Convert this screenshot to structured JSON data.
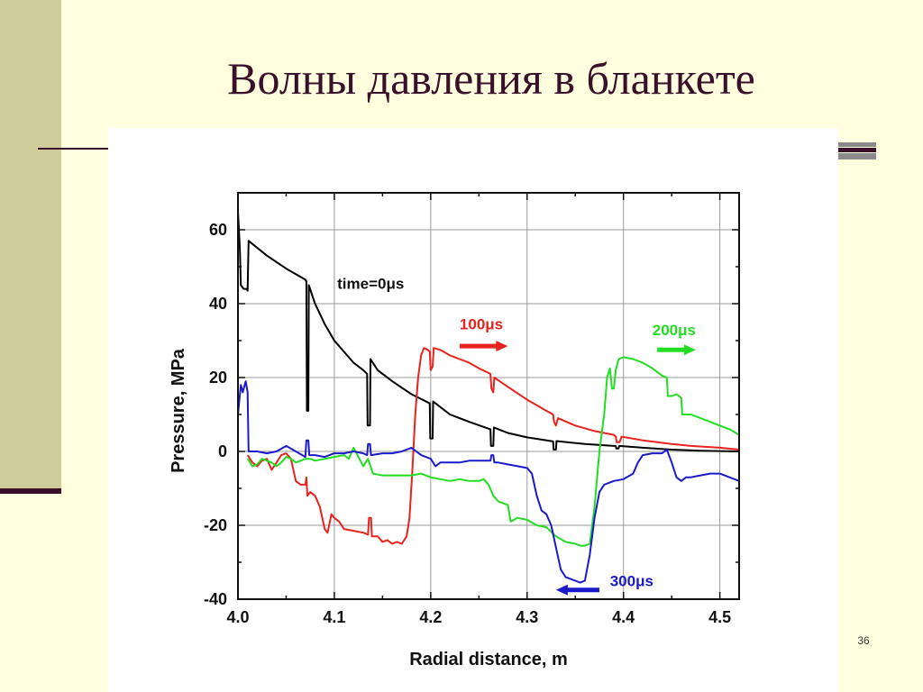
{
  "slide": {
    "title": "Волны давления в бланкете",
    "page_number": "36"
  },
  "colors": {
    "background": "#ffffe0",
    "accent_dark": "#3a0f2a",
    "band": "#cfcb9a"
  },
  "chart_data": {
    "type": "line",
    "title": "",
    "xlabel": "Radial distance, m",
    "ylabel": "Pressure, MPa",
    "xlim": [
      4.0,
      4.52
    ],
    "ylim": [
      -40,
      70
    ],
    "x_ticks": [
      4.0,
      4.1,
      4.2,
      4.3,
      4.4,
      4.5
    ],
    "x_tick_labels": [
      "4.0",
      "4.1",
      "4.2",
      "4.3",
      "4.4",
      "4.5"
    ],
    "y_ticks": [
      -40,
      -20,
      0,
      20,
      40,
      60
    ],
    "y_tick_labels": [
      "-40",
      "-20",
      "0",
      "20",
      "40",
      "60"
    ],
    "grid": true,
    "legend": "none",
    "series": [
      {
        "label": "time=0μs",
        "color": "#000000",
        "annotation": {
          "text": "time=0μs",
          "x": 4.103,
          "y": 44,
          "color": "#111111"
        },
        "points": [
          [
            4.0,
            65
          ],
          [
            4.002,
            55
          ],
          [
            4.003,
            45
          ],
          [
            4.006,
            44
          ],
          [
            4.009,
            44
          ],
          [
            4.01,
            43.5
          ],
          [
            4.011,
            57
          ],
          [
            4.03,
            53
          ],
          [
            4.05,
            49.5
          ],
          [
            4.07,
            46.5
          ],
          [
            4.071,
            46
          ],
          [
            4.0715,
            11
          ],
          [
            4.073,
            11
          ],
          [
            4.0735,
            45
          ],
          [
            4.08,
            40
          ],
          [
            4.09,
            34.5
          ],
          [
            4.1,
            30
          ],
          [
            4.11,
            27
          ],
          [
            4.12,
            24
          ],
          [
            4.13,
            22
          ],
          [
            4.134,
            21
          ],
          [
            4.1345,
            7
          ],
          [
            4.137,
            7
          ],
          [
            4.1375,
            25
          ],
          [
            4.145,
            22
          ],
          [
            4.16,
            19
          ],
          [
            4.18,
            15.5
          ],
          [
            4.199,
            13
          ],
          [
            4.1995,
            3.5
          ],
          [
            4.202,
            3.5
          ],
          [
            4.2025,
            13.5
          ],
          [
            4.22,
            10
          ],
          [
            4.24,
            8
          ],
          [
            4.262,
            6
          ],
          [
            4.2625,
            1.5
          ],
          [
            4.265,
            1.5
          ],
          [
            4.2655,
            6.5
          ],
          [
            4.28,
            5
          ],
          [
            4.3,
            3.8
          ],
          [
            4.327,
            2.7
          ],
          [
            4.3275,
            0.5
          ],
          [
            4.33,
            0.5
          ],
          [
            4.3305,
            2.8
          ],
          [
            4.36,
            2
          ],
          [
            4.39,
            1.5
          ],
          [
            4.392,
            1.5
          ],
          [
            4.3925,
            0.8
          ],
          [
            4.395,
            0.8
          ],
          [
            4.3955,
            1.5
          ],
          [
            4.42,
            1
          ],
          [
            4.45,
            0.5
          ],
          [
            4.48,
            0.2
          ],
          [
            4.52,
            0
          ]
        ]
      },
      {
        "label": "100μs",
        "color": "#e8221c",
        "annotation": {
          "text": "100μs",
          "x": 4.23,
          "y": 33,
          "color": "#e8221c"
        },
        "arrow": {
          "from": [
            4.23,
            28.5
          ],
          "to": [
            4.28,
            28.5
          ],
          "color": "#e8221c"
        },
        "points": [
          [
            4.01,
            -1
          ],
          [
            4.015,
            -3
          ],
          [
            4.02,
            -4
          ],
          [
            4.025,
            -2.5
          ],
          [
            4.03,
            -2
          ],
          [
            4.035,
            -5
          ],
          [
            4.04,
            -3
          ],
          [
            4.045,
            -1
          ],
          [
            4.05,
            -0.5
          ],
          [
            4.055,
            -2
          ],
          [
            4.06,
            -8
          ],
          [
            4.065,
            -9
          ],
          [
            4.07,
            -9
          ],
          [
            4.071,
            -7
          ],
          [
            4.072,
            -12
          ],
          [
            4.075,
            -11
          ],
          [
            4.08,
            -12
          ],
          [
            4.085,
            -15
          ],
          [
            4.09,
            -21
          ],
          [
            4.093,
            -22
          ],
          [
            4.097,
            -17
          ],
          [
            4.1,
            -18
          ],
          [
            4.105,
            -19
          ],
          [
            4.11,
            -21
          ],
          [
            4.12,
            -21.5
          ],
          [
            4.13,
            -22
          ],
          [
            4.135,
            -22.5
          ],
          [
            4.136,
            -18
          ],
          [
            4.138,
            -18
          ],
          [
            4.139,
            -23
          ],
          [
            4.145,
            -23
          ],
          [
            4.15,
            -24.5
          ],
          [
            4.155,
            -24
          ],
          [
            4.16,
            -25
          ],
          [
            4.165,
            -24.5
          ],
          [
            4.17,
            -25
          ],
          [
            4.175,
            -23
          ],
          [
            4.178,
            -18
          ],
          [
            4.181,
            -5
          ],
          [
            4.184,
            10
          ],
          [
            4.187,
            20
          ],
          [
            4.19,
            26
          ],
          [
            4.193,
            28
          ],
          [
            4.197,
            27.5
          ],
          [
            4.199,
            27
          ],
          [
            4.2,
            22
          ],
          [
            4.202,
            23
          ],
          [
            4.203,
            28
          ],
          [
            4.21,
            27.5
          ],
          [
            4.22,
            26
          ],
          [
            4.23,
            25
          ],
          [
            4.24,
            24
          ],
          [
            4.25,
            22.5
          ],
          [
            4.262,
            21
          ],
          [
            4.263,
            17
          ],
          [
            4.265,
            16
          ],
          [
            4.266,
            20
          ],
          [
            4.28,
            17.5
          ],
          [
            4.3,
            14
          ],
          [
            4.32,
            11
          ],
          [
            4.327,
            10
          ],
          [
            4.328,
            8
          ],
          [
            4.33,
            7
          ],
          [
            4.332,
            9
          ],
          [
            4.35,
            7
          ],
          [
            4.37,
            5.5
          ],
          [
            4.39,
            4.5
          ],
          [
            4.392,
            4
          ],
          [
            4.393,
            2.5
          ],
          [
            4.396,
            2.5
          ],
          [
            4.398,
            4
          ],
          [
            4.42,
            3
          ],
          [
            4.45,
            2
          ],
          [
            4.47,
            1.5
          ],
          [
            4.5,
            1
          ],
          [
            4.52,
            0.5
          ]
        ]
      },
      {
        "label": "200μs",
        "color": "#22dd22",
        "annotation": {
          "text": "200μs",
          "x": 4.43,
          "y": 31.5,
          "color": "#22dd22"
        },
        "arrow": {
          "from": [
            4.435,
            27.5
          ],
          "to": [
            4.475,
            27.5
          ],
          "color": "#22dd22"
        },
        "points": [
          [
            4.01,
            -2
          ],
          [
            4.015,
            -4
          ],
          [
            4.02,
            -3.5
          ],
          [
            4.025,
            -2
          ],
          [
            4.03,
            -2.5
          ],
          [
            4.035,
            -3
          ],
          [
            4.04,
            -4
          ],
          [
            4.045,
            -3
          ],
          [
            4.05,
            -1.5
          ],
          [
            4.055,
            -2
          ],
          [
            4.06,
            -3
          ],
          [
            4.065,
            -2.5
          ],
          [
            4.07,
            -2
          ],
          [
            4.075,
            -2
          ],
          [
            4.08,
            -2.5
          ],
          [
            4.09,
            -2
          ],
          [
            4.1,
            -1.5
          ],
          [
            4.11,
            -1
          ],
          [
            4.115,
            -2
          ],
          [
            4.12,
            1
          ],
          [
            4.125,
            -1.5
          ],
          [
            4.13,
            -4
          ],
          [
            4.135,
            -2
          ],
          [
            4.14,
            -6
          ],
          [
            4.15,
            -6.5
          ],
          [
            4.16,
            -6.5
          ],
          [
            4.17,
            -6.5
          ],
          [
            4.18,
            -6.5
          ],
          [
            4.19,
            -6
          ],
          [
            4.2,
            -7
          ],
          [
            4.21,
            -7.5
          ],
          [
            4.22,
            -8
          ],
          [
            4.23,
            -7.5
          ],
          [
            4.24,
            -8
          ],
          [
            4.25,
            -8
          ],
          [
            4.255,
            -7.5
          ],
          [
            4.26,
            -9
          ],
          [
            4.265,
            -12
          ],
          [
            4.27,
            -13.5
          ],
          [
            4.275,
            -14
          ],
          [
            4.28,
            -14.5
          ],
          [
            4.283,
            -19
          ],
          [
            4.29,
            -18
          ],
          [
            4.3,
            -18.5
          ],
          [
            4.31,
            -20
          ],
          [
            4.32,
            -20.5
          ],
          [
            4.33,
            -23
          ],
          [
            4.34,
            -24.5
          ],
          [
            4.35,
            -25
          ],
          [
            4.355,
            -25.5
          ],
          [
            4.36,
            -25.5
          ],
          [
            4.365,
            -25
          ],
          [
            4.37,
            -15
          ],
          [
            4.375,
            0
          ],
          [
            4.38,
            10
          ],
          [
            4.383,
            20
          ],
          [
            4.386,
            22.5
          ],
          [
            4.388,
            17
          ],
          [
            4.39,
            17
          ],
          [
            4.392,
            22
          ],
          [
            4.395,
            25
          ],
          [
            4.4,
            25.5
          ],
          [
            4.41,
            25
          ],
          [
            4.42,
            24
          ],
          [
            4.43,
            22.5
          ],
          [
            4.44,
            20.5
          ],
          [
            4.445,
            20
          ],
          [
            4.446,
            15
          ],
          [
            4.45,
            15
          ],
          [
            4.455,
            15.5
          ],
          [
            4.46,
            14.5
          ],
          [
            4.461,
            10
          ],
          [
            4.465,
            10
          ],
          [
            4.47,
            10
          ],
          [
            4.48,
            9
          ],
          [
            4.49,
            8
          ],
          [
            4.5,
            7
          ],
          [
            4.51,
            6
          ],
          [
            4.52,
            4.5
          ]
        ]
      },
      {
        "label": "300μs",
        "color": "#1a1acc",
        "annotation": {
          "text": "300μs",
          "x": 4.386,
          "y": -36.5,
          "color": "#1a1acc"
        },
        "arrow": {
          "from": [
            4.375,
            -37.5
          ],
          "to": [
            4.33,
            -37.5
          ],
          "color": "#1a1acc"
        },
        "points": [
          [
            4.0,
            10
          ],
          [
            4.003,
            18
          ],
          [
            4.005,
            16
          ],
          [
            4.008,
            19
          ],
          [
            4.01,
            16
          ],
          [
            4.011,
            0
          ],
          [
            4.02,
            0
          ],
          [
            4.03,
            -0.5
          ],
          [
            4.04,
            0
          ],
          [
            4.05,
            1.5
          ],
          [
            4.06,
            0
          ],
          [
            4.07,
            -1.5
          ],
          [
            4.071,
            3
          ],
          [
            4.073,
            3
          ],
          [
            4.074,
            -1
          ],
          [
            4.08,
            -1
          ],
          [
            4.09,
            -1.5
          ],
          [
            4.1,
            -0.5
          ],
          [
            4.11,
            -0.5
          ],
          [
            4.12,
            0
          ],
          [
            4.13,
            -0.5
          ],
          [
            4.134,
            -1
          ],
          [
            4.135,
            2
          ],
          [
            4.137,
            2
          ],
          [
            4.138,
            -1
          ],
          [
            4.15,
            -0.5
          ],
          [
            4.16,
            -0.5
          ],
          [
            4.17,
            0
          ],
          [
            4.18,
            1
          ],
          [
            4.185,
            0
          ],
          [
            4.19,
            -1
          ],
          [
            4.2,
            -2
          ],
          [
            4.205,
            -4
          ],
          [
            4.21,
            -3
          ],
          [
            4.22,
            -3
          ],
          [
            4.23,
            -3
          ],
          [
            4.24,
            -2.5
          ],
          [
            4.25,
            -2.5
          ],
          [
            4.262,
            -2.5
          ],
          [
            4.263,
            -1
          ],
          [
            4.265,
            -1
          ],
          [
            4.266,
            -3
          ],
          [
            4.27,
            -3
          ],
          [
            4.28,
            -3.5
          ],
          [
            4.29,
            -4
          ],
          [
            4.3,
            -4.5
          ],
          [
            4.305,
            -6
          ],
          [
            4.31,
            -12
          ],
          [
            4.315,
            -16
          ],
          [
            4.32,
            -17
          ],
          [
            4.325,
            -20
          ],
          [
            4.33,
            -26
          ],
          [
            4.335,
            -32
          ],
          [
            4.34,
            -34
          ],
          [
            4.35,
            -35
          ],
          [
            4.355,
            -35.5
          ],
          [
            4.36,
            -35
          ],
          [
            4.365,
            -28
          ],
          [
            4.37,
            -18
          ],
          [
            4.375,
            -11
          ],
          [
            4.38,
            -9
          ],
          [
            4.39,
            -8
          ],
          [
            4.4,
            -7.5
          ],
          [
            4.41,
            -6
          ],
          [
            4.415,
            -3
          ],
          [
            4.42,
            -1
          ],
          [
            4.43,
            -0.5
          ],
          [
            4.44,
            -0.5
          ],
          [
            4.445,
            0.5
          ],
          [
            4.45,
            -3
          ],
          [
            4.455,
            -7
          ],
          [
            4.46,
            -8
          ],
          [
            4.465,
            -7
          ],
          [
            4.47,
            -7
          ],
          [
            4.48,
            -6.5
          ],
          [
            4.49,
            -6
          ],
          [
            4.5,
            -6
          ],
          [
            4.51,
            -7
          ],
          [
            4.52,
            -8
          ]
        ]
      }
    ]
  }
}
